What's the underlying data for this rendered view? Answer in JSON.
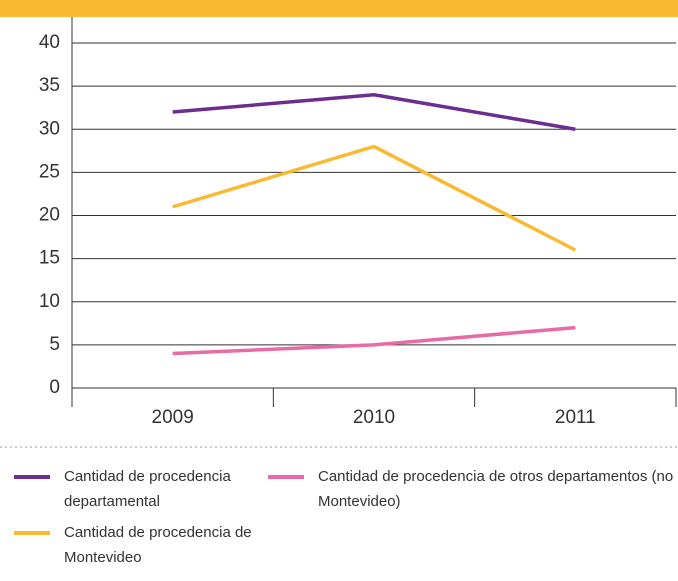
{
  "chart_data": {
    "type": "line",
    "categories": [
      "2009",
      "2010",
      "2011"
    ],
    "series": [
      {
        "name": "Cantidad de procedencia departamental",
        "color": "#6b2d90",
        "values": [
          32,
          34,
          30
        ]
      },
      {
        "name": "Cantidad de procedencia de Montevideo",
        "color": "#f9b932",
        "values": [
          21,
          28,
          16
        ]
      },
      {
        "name": "Cantidad de procedencia de otros departamentos (no Montevideo)",
        "color": "#e86aa6",
        "values": [
          4,
          5,
          7
        ]
      }
    ],
    "ylim": [
      0,
      40
    ],
    "yticks": [
      0,
      5,
      10,
      15,
      20,
      25,
      30,
      35,
      40
    ],
    "grid": true
  }
}
